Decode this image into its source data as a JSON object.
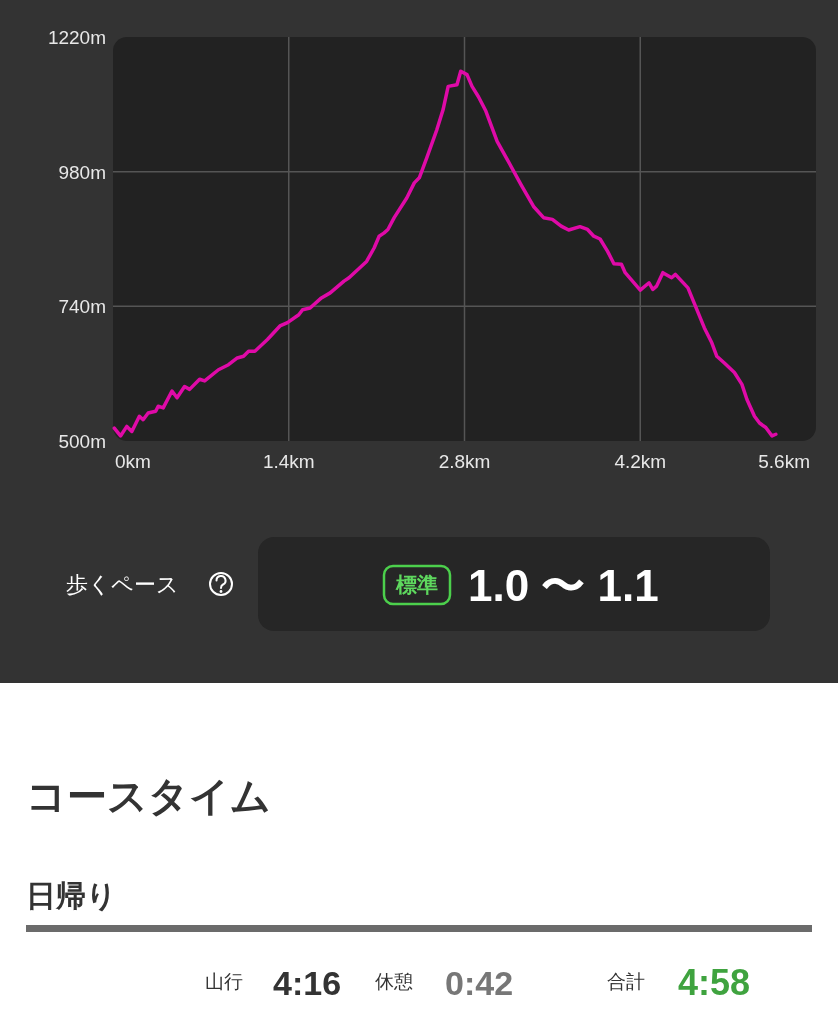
{
  "chart_data": {
    "type": "line",
    "color": "#e00aa8",
    "grid": true,
    "xlim": [
      0,
      5.6
    ],
    "ylim": [
      500,
      1220
    ],
    "xticks": [
      {
        "value": 0,
        "label": "0km"
      },
      {
        "value": 1.4,
        "label": "1.4km"
      },
      {
        "value": 2.8,
        "label": "2.8km"
      },
      {
        "value": 4.2,
        "label": "4.2km"
      },
      {
        "value": 5.6,
        "label": "5.6km"
      }
    ],
    "yticks": [
      {
        "value": 500,
        "label": "500m"
      },
      {
        "value": 740,
        "label": "740m"
      },
      {
        "value": 980,
        "label": "980m"
      },
      {
        "value": 1220,
        "label": "1220m"
      }
    ],
    "x": [
      0.01,
      0.06,
      0.11,
      0.15,
      0.21,
      0.24,
      0.28,
      0.34,
      0.36,
      0.4,
      0.47,
      0.51,
      0.57,
      0.61,
      0.69,
      0.73,
      0.84,
      0.92,
      0.99,
      1.04,
      1.08,
      1.13,
      1.23,
      1.33,
      1.39,
      1.48,
      1.51,
      1.57,
      1.66,
      1.73,
      1.84,
      1.88,
      2.02,
      2.08,
      2.12,
      2.16,
      2.19,
      2.24,
      2.34,
      2.4,
      2.44,
      2.5,
      2.58,
      2.63,
      2.67,
      2.74,
      2.77,
      2.82,
      2.86,
      2.91,
      2.97,
      3.06,
      3.14,
      3.25,
      3.35,
      3.43,
      3.5,
      3.57,
      3.63,
      3.72,
      3.78,
      3.83,
      3.88,
      3.94,
      3.99,
      4.05,
      4.08,
      4.2,
      4.27,
      4.3,
      4.33,
      4.38,
      4.45,
      4.48,
      4.58,
      4.71,
      4.77,
      4.81,
      4.87,
      4.95,
      5.01,
      5.05,
      5.11,
      5.15,
      5.2,
      5.25,
      5.28
    ],
    "values": [
      523,
      509,
      526,
      517,
      544,
      538,
      550,
      553,
      562,
      559,
      589,
      577,
      597,
      592,
      610,
      607,
      627,
      636,
      648,
      651,
      660,
      660,
      681,
      705,
      711,
      725,
      734,
      737,
      755,
      764,
      785,
      791,
      820,
      844,
      865,
      871,
      877,
      898,
      933,
      960,
      969,
      1005,
      1055,
      1091,
      1132,
      1135,
      1159,
      1153,
      1132,
      1114,
      1088,
      1034,
      1002,
      957,
      918,
      898,
      895,
      883,
      876,
      882,
      877,
      865,
      860,
      838,
      816,
      815,
      800,
      769,
      782,
      770,
      776,
      800,
      791,
      797,
      773,
      702,
      675,
      651,
      639,
      622,
      601,
      574,
      544,
      532,
      524,
      509,
      512
    ],
    "annotations": [
      "歩くペース",
      "標準",
      "1.0 〜 1.1",
      "コースタイム",
      "日帰り",
      "山行",
      "4:16",
      "休憩",
      "0:42",
      "合計",
      "4:58"
    ]
  }
}
